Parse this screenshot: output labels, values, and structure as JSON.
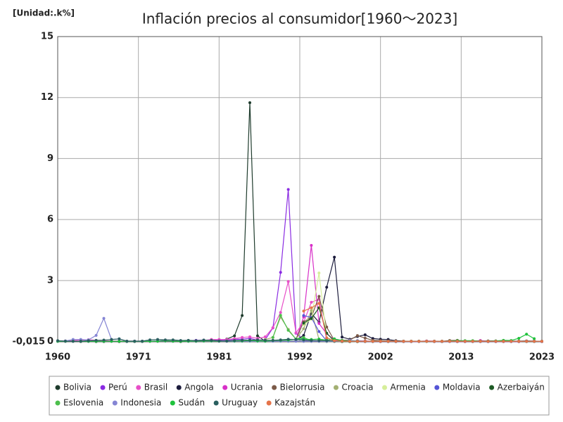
{
  "chart_data": {
    "type": "line",
    "title": "Inflación precios al consumidor[1960～2023]",
    "unit_label": "[Unidad:.k%]",
    "xlim": [
      1960,
      2023
    ],
    "xticks": [
      1960,
      {
        "value": 1970.5,
        "label": "1971"
      },
      1981,
      {
        "value": 1991.5,
        "label": "1992"
      },
      2002,
      {
        "value": 2012.5,
        "label": "2013"
      },
      2023
    ],
    "ylim": [
      -0.015,
      15
    ],
    "yticks": [
      {
        "value": -0.015,
        "label": "-0,015"
      },
      0,
      3,
      6,
      9,
      12,
      15
    ],
    "grid": true,
    "legend": "bottom",
    "x": [
      1960,
      1961,
      1962,
      1963,
      1964,
      1965,
      1966,
      1967,
      1968,
      1969,
      1970,
      1971,
      1972,
      1973,
      1974,
      1975,
      1976,
      1977,
      1978,
      1979,
      1980,
      1981,
      1982,
      1983,
      1984,
      1985,
      1986,
      1987,
      1988,
      1989,
      1990,
      1991,
      1992,
      1993,
      1994,
      1995,
      1996,
      1997,
      1998,
      1999,
      2000,
      2001,
      2002,
      2003,
      2004,
      2005,
      2006,
      2007,
      2008,
      2009,
      2010,
      2011,
      2012,
      2013,
      2014,
      2015,
      2016,
      2017,
      2018,
      2019,
      2020,
      2021,
      2022,
      2023
    ],
    "series": [
      {
        "name": "Bolivia",
        "color": "#1e3b2c",
        "values": [
          0.01,
          0.01,
          0.01,
          0,
          0.01,
          0,
          0,
          0.01,
          0,
          0,
          0,
          0,
          0.01,
          0.03,
          0.06,
          0.01,
          0,
          0.01,
          0.01,
          0.02,
          0.05,
          0.03,
          0.12,
          0.28,
          1.28,
          11.75,
          0.28,
          0.015,
          0.02,
          0.02,
          0.02,
          0.02,
          0.01,
          0.01,
          0.01,
          0.01,
          0.01,
          0,
          0,
          0,
          0,
          0,
          0,
          0,
          0,
          0,
          0,
          0.01,
          0.01,
          0,
          0,
          0.01,
          0,
          0,
          0,
          0,
          0,
          0,
          0,
          0,
          0,
          0,
          0,
          0
        ]
      },
      {
        "name": "Perú",
        "color": "#8a2be2",
        "values": [
          0.01,
          0.01,
          0.01,
          0.01,
          0.01,
          0.02,
          0.01,
          0.01,
          0.02,
          0.01,
          0.01,
          0.01,
          0.01,
          0.01,
          0.02,
          0.02,
          0.03,
          0.04,
          0.06,
          0.07,
          0.06,
          0.08,
          0.06,
          0.11,
          0.11,
          0.16,
          0.06,
          0.09,
          0.67,
          3.4,
          7.48,
          0.41,
          0.07,
          0.05,
          0.02,
          0.01,
          0.01,
          0.01,
          0.01,
          0,
          0,
          0,
          0,
          0,
          0,
          0,
          0,
          0,
          0.01,
          0,
          0,
          0,
          0,
          0,
          0,
          0,
          0,
          0,
          0,
          0,
          0,
          0.01,
          0.01,
          0
        ]
      },
      {
        "name": "Brasil",
        "color": "#e84fc8",
        "values": [
          0.03,
          0.03,
          0.05,
          0.07,
          0.09,
          0.06,
          0.04,
          0.03,
          0.02,
          0.02,
          0.02,
          0.02,
          0.02,
          0.01,
          0.03,
          0.03,
          0.04,
          0.04,
          0.04,
          0.05,
          0.1,
          0.1,
          0.1,
          0.14,
          0.2,
          0.23,
          0.15,
          0.23,
          0.68,
          1.43,
          2.95,
          0.43,
          0.95,
          1.93,
          2.08,
          0.07,
          0.02,
          0.01,
          0,
          0,
          0.01,
          0.01,
          0.01,
          0.01,
          0.01,
          0.01,
          0,
          0,
          0.01,
          0,
          0.01,
          0.01,
          0.01,
          0.01,
          0.01,
          0.01,
          0.01,
          0,
          0,
          0,
          0,
          0.01,
          0.01,
          0
        ]
      },
      {
        "name": "Angola",
        "color": "#1c1c3c",
        "values": [
          null,
          null,
          null,
          null,
          null,
          null,
          null,
          null,
          null,
          null,
          null,
          null,
          null,
          null,
          null,
          null,
          null,
          null,
          null,
          null,
          null,
          null,
          null,
          null,
          null,
          null,
          null,
          null,
          null,
          null,
          null,
          0.08,
          0.3,
          1.38,
          0.95,
          2.67,
          4.15,
          0.22,
          0.11,
          0.25,
          0.33,
          0.15,
          0.11,
          0.1,
          0.04,
          0.02,
          0.01,
          0.01,
          0.01,
          0.01,
          0.01,
          0.01,
          0.01,
          0.01,
          0.01,
          0.01,
          0.03,
          0.03,
          0.02,
          0.02,
          0.02,
          0.03,
          0.02,
          0.01
        ]
      },
      {
        "name": "Ucrania",
        "color": "#d830c8",
        "values": [
          null,
          null,
          null,
          null,
          null,
          null,
          null,
          null,
          null,
          null,
          null,
          null,
          null,
          null,
          null,
          null,
          null,
          null,
          null,
          null,
          null,
          null,
          null,
          null,
          null,
          null,
          null,
          null,
          null,
          null,
          null,
          0.09,
          1.21,
          4.73,
          0.89,
          0.38,
          0.08,
          0.02,
          0.01,
          0.02,
          0.03,
          0.01,
          0,
          0.01,
          0.01,
          0.01,
          0.01,
          0.01,
          0.03,
          0.02,
          0.01,
          0.01,
          0,
          0,
          0.01,
          0.05,
          0.01,
          0.01,
          0.01,
          0.01,
          0,
          0.01,
          0.02,
          0.01
        ]
      },
      {
        "name": "Bielorrusia",
        "color": "#7b5a48",
        "values": [
          null,
          null,
          null,
          null,
          null,
          null,
          null,
          null,
          null,
          null,
          null,
          null,
          null,
          null,
          null,
          null,
          null,
          null,
          null,
          null,
          null,
          null,
          null,
          null,
          null,
          null,
          null,
          null,
          null,
          null,
          null,
          0.1,
          0.97,
          1.19,
          2.22,
          0.71,
          0.05,
          0.06,
          0.07,
          0.29,
          0.17,
          0.06,
          0.04,
          0.03,
          0.02,
          0.01,
          0.01,
          0.01,
          0.01,
          0.01,
          0.01,
          0.05,
          0.06,
          0.02,
          0.02,
          0.01,
          0.01,
          0.01,
          0.01,
          0.01,
          0.01,
          0.01,
          0.02,
          0.01
        ]
      },
      {
        "name": "Croacia",
        "color": "#a3b072",
        "values": [
          null,
          null,
          null,
          null,
          null,
          null,
          null,
          null,
          null,
          null,
          null,
          null,
          null,
          null,
          null,
          null,
          null,
          null,
          null,
          null,
          null,
          null,
          null,
          null,
          null,
          null,
          null,
          0.1,
          0.2,
          1.2,
          0.6,
          0.12,
          0.63,
          1.52,
          0.1,
          0,
          0,
          0,
          0,
          0,
          0.01,
          0.01,
          0.01,
          0.01,
          0.01,
          0.01,
          0.01,
          0.01,
          0.01,
          0.01,
          0.01,
          0.01,
          0.01,
          0.01,
          0.01,
          0.01,
          0.01,
          0.01,
          0.01,
          0.01,
          0.01,
          0.01,
          0.01,
          0.01
        ]
      },
      {
        "name": "Armenia",
        "color": "#d6ee9a",
        "values": [
          null,
          null,
          null,
          null,
          null,
          null,
          null,
          null,
          null,
          null,
          null,
          null,
          null,
          null,
          null,
          null,
          null,
          null,
          null,
          null,
          null,
          null,
          null,
          null,
          null,
          null,
          null,
          null,
          null,
          null,
          null,
          null,
          0.82,
          1.1,
          3.37,
          0.18,
          0.02,
          0.01,
          0.01,
          0,
          0.01,
          0.01,
          0.01,
          0.01,
          0.01,
          0.01,
          0.01,
          0.01,
          0.01,
          0.01,
          0.01,
          0.01,
          0.01,
          0.01,
          0.01,
          0.01,
          0.01,
          0.01,
          0.01,
          0.01,
          0.01,
          0.01,
          0.01,
          0.01
        ]
      },
      {
        "name": "Moldavia",
        "color": "#5555d6",
        "values": [
          null,
          null,
          null,
          null,
          null,
          null,
          null,
          null,
          null,
          null,
          null,
          null,
          null,
          null,
          null,
          null,
          null,
          null,
          null,
          null,
          null,
          null,
          null,
          null,
          null,
          null,
          null,
          null,
          null,
          null,
          null,
          null,
          1.28,
          1.18,
          0.49,
          0.03,
          0.02,
          0.01,
          0.01,
          0.04,
          0.01,
          0.01,
          0.01,
          0.01,
          0.01,
          0.01,
          0.01,
          0.01,
          0.01,
          0.01,
          0.01,
          0.01,
          0.01,
          0.01,
          0.01,
          0.01,
          0.01,
          0.01,
          0.01,
          0.01,
          0.01,
          0.01,
          0.01,
          0.01
        ]
      },
      {
        "name": "Azerbaiyán",
        "color": "#1d5a24",
        "values": [
          null,
          null,
          null,
          null,
          null,
          null,
          null,
          null,
          null,
          null,
          null,
          null,
          null,
          null,
          null,
          null,
          null,
          null,
          null,
          null,
          null,
          null,
          null,
          null,
          null,
          null,
          null,
          null,
          null,
          null,
          null,
          null,
          0.9,
          1.13,
          1.66,
          0.41,
          0.02,
          0,
          0,
          0,
          0.01,
          0.01,
          0.01,
          0.01,
          0.01,
          0.01,
          0.01,
          0.01,
          0.01,
          0.01,
          0.01,
          0.01,
          0.01,
          0.01,
          0.01,
          0.01,
          0.01,
          0.01,
          0.01,
          0.01,
          0.01,
          0.01,
          0.01,
          0.01
        ]
      },
      {
        "name": "Eslovenia",
        "color": "#4cbf4c",
        "values": [
          null,
          null,
          null,
          null,
          null,
          null,
          null,
          null,
          null,
          null,
          null,
          null,
          null,
          null,
          null,
          null,
          null,
          null,
          null,
          null,
          null,
          null,
          null,
          null,
          null,
          null,
          null,
          null,
          0.2,
          1.29,
          0.55,
          0.12,
          0.2,
          0.03,
          0.02,
          0.01,
          0.01,
          0.01,
          0.01,
          0.01,
          0.01,
          0.01,
          0.01,
          0.01,
          0.01,
          0.01,
          0.01,
          0.01,
          0.01,
          0.01,
          0.01,
          0.01,
          0.01,
          0.01,
          0.01,
          0.01,
          0.01,
          0.01,
          0.01,
          0.01,
          0.01,
          0.01,
          0.01,
          0.01
        ]
      },
      {
        "name": "Indonesia",
        "color": "#8585d4",
        "values": [
          0.02,
          0.03,
          0.1,
          0.1,
          0.08,
          0.3,
          1.14,
          0.1,
          0.13,
          0.01,
          0.01,
          0.01,
          0.01,
          0.03,
          0.04,
          0.02,
          0.02,
          0.01,
          0.01,
          0.02,
          0.02,
          0.01,
          0.01,
          0.01,
          0.01,
          0.01,
          0.01,
          0.01,
          0.01,
          0.01,
          0.01,
          0.01,
          0.01,
          0.01,
          0.01,
          0.01,
          0.01,
          0.01,
          0.06,
          0.02,
          0.01,
          0.01,
          0.01,
          0.01,
          0.01,
          0.01,
          0.01,
          0.01,
          0.01,
          0.01,
          0.01,
          0.01,
          0.01,
          0.01,
          0.01,
          0.01,
          0.01,
          0.01,
          0.01,
          0.01,
          0.01,
          0.01,
          0.01,
          0.01
        ]
      },
      {
        "name": "Sudán",
        "color": "#1fc23c",
        "values": [
          0.01,
          0.01,
          0.01,
          0.01,
          0.01,
          0.01,
          0.01,
          0.01,
          0.01,
          0.01,
          0.01,
          0.01,
          0.01,
          0.01,
          0.03,
          0.02,
          0.01,
          0.02,
          0.02,
          0.03,
          0.03,
          0.02,
          0.03,
          0.03,
          0.03,
          0.05,
          0.03,
          0.02,
          0.05,
          0.06,
          0.07,
          0.12,
          0.12,
          0.1,
          0.12,
          0.07,
          0.13,
          0.05,
          0.02,
          0.02,
          0.01,
          0.01,
          0.01,
          0.01,
          0.01,
          0.01,
          0.01,
          0.01,
          0.01,
          0.01,
          0.01,
          0.02,
          0.04,
          0.04,
          0.04,
          0.02,
          0.02,
          0.03,
          0.06,
          0.05,
          0.16,
          0.36,
          0.14,
          null
        ]
      },
      {
        "name": "Uruguay",
        "color": "#2a5f5f",
        "values": [
          0.04,
          0.02,
          0.01,
          0.02,
          0.04,
          0.06,
          0.07,
          0.1,
          0.13,
          0.02,
          0.02,
          0.02,
          0.08,
          0.1,
          0.08,
          0.08,
          0.05,
          0.06,
          0.04,
          0.07,
          0.06,
          0.03,
          0.02,
          0.05,
          0.06,
          0.07,
          0.08,
          0.06,
          0.06,
          0.08,
          0.11,
          0.1,
          0.07,
          0.05,
          0.04,
          0.04,
          0.03,
          0.02,
          0.01,
          0.01,
          0.01,
          0.01,
          0.01,
          0.02,
          0.01,
          0.01,
          0.01,
          0.01,
          0.01,
          0.01,
          0.01,
          0.01,
          0.01,
          0.01,
          0.01,
          0.01,
          0.01,
          0.01,
          0.01,
          0.01,
          0.01,
          0.01,
          0.01,
          0.01
        ]
      },
      {
        "name": "Kazajstán",
        "color": "#e5744a",
        "values": [
          null,
          null,
          null,
          null,
          null,
          null,
          null,
          null,
          null,
          null,
          null,
          null,
          null,
          null,
          null,
          null,
          null,
          null,
          null,
          null,
          null,
          null,
          null,
          null,
          null,
          null,
          null,
          null,
          null,
          null,
          null,
          null,
          1.5,
          1.66,
          1.88,
          0.18,
          0.04,
          0.02,
          0.01,
          0.01,
          0.01,
          0.01,
          0.01,
          0.01,
          0.01,
          0.01,
          0.01,
          0.01,
          0.01,
          0.01,
          0.01,
          0.01,
          0.01,
          0.01,
          0.01,
          0.01,
          0.01,
          0.01,
          0.01,
          0.01,
          0.01,
          0.01,
          0.01,
          0.01
        ]
      }
    ]
  }
}
